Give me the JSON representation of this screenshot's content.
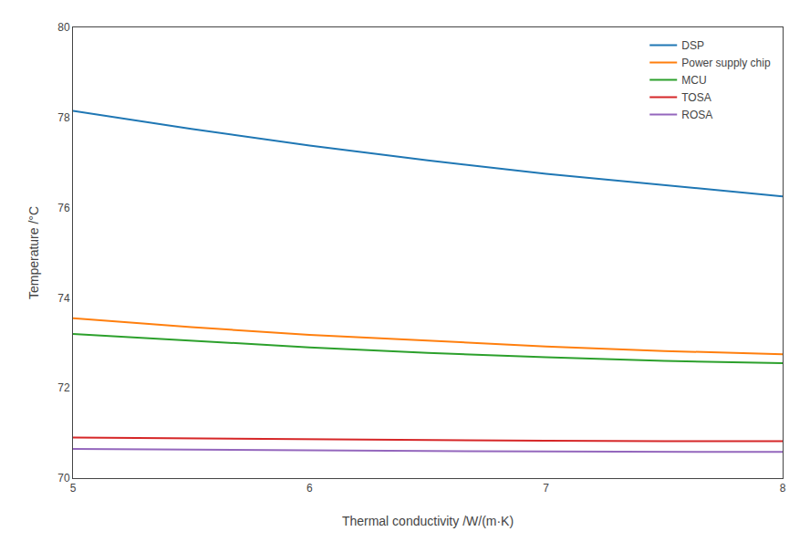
{
  "chart_data": {
    "type": "line",
    "x": [
      5,
      5.5,
      6,
      6.5,
      7,
      7.5,
      8
    ],
    "series": [
      {
        "name": "DSP",
        "values": [
          78.15,
          77.75,
          77.38,
          77.05,
          76.75,
          76.5,
          76.25
        ]
      },
      {
        "name": "Power supply chip",
        "values": [
          73.55,
          73.35,
          73.18,
          73.05,
          72.92,
          72.82,
          72.75
        ]
      },
      {
        "name": "MCU",
        "values": [
          73.2,
          73.05,
          72.9,
          72.78,
          72.68,
          72.6,
          72.55
        ]
      },
      {
        "name": "TOSA",
        "values": [
          70.9,
          70.88,
          70.86,
          70.84,
          70.83,
          70.82,
          70.82
        ]
      },
      {
        "name": "ROSA",
        "values": [
          70.65,
          70.63,
          70.61,
          70.6,
          70.59,
          70.58,
          70.58
        ]
      }
    ],
    "xlabel": "Thermal conductivity /W/(m·K)",
    "ylabel": "Temperature /°C",
    "xlim": [
      5,
      8
    ],
    "ylim": [
      70,
      80
    ],
    "xticks": [
      5,
      6,
      7,
      8
    ],
    "yticks": [
      70,
      72,
      74,
      76,
      78,
      80
    ],
    "grid": false,
    "legend": "upper right"
  }
}
